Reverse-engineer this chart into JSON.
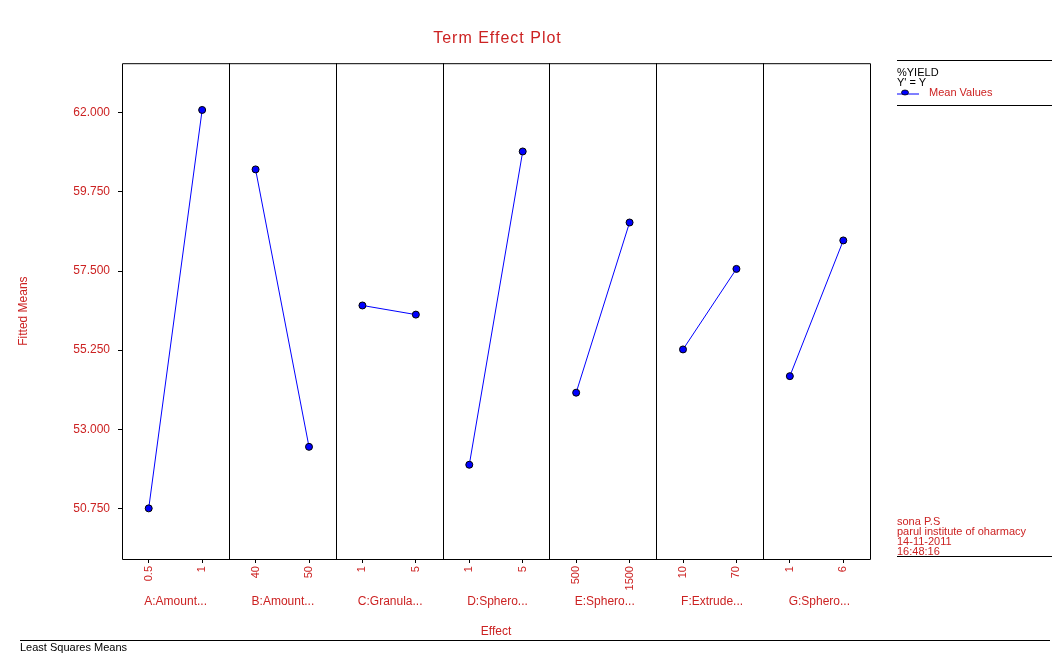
{
  "chart_data": {
    "type": "line",
    "title": "Term Effect Plot",
    "ylabel": "Fitted Means",
    "xlabel": "Effect",
    "legend": "right",
    "legend_title": "%YIELD\nY' = Y",
    "marker": "circle",
    "categories": [
      "0.5",
      "1",
      "40",
      "50",
      "1",
      "5",
      "1",
      "5",
      "500",
      "1500",
      "10",
      "70",
      "1",
      "6"
    ],
    "ylim": [
      49.31,
      63.41
    ],
    "yticks": [
      {
        "value": 50.75,
        "label": "50.750"
      },
      {
        "value": 53,
        "label": "53.000"
      },
      {
        "value": 55.25,
        "label": "55.250"
      },
      {
        "value": 57.5,
        "label": "57.500"
      },
      {
        "value": 59.75,
        "label": "59.750"
      },
      {
        "value": 62,
        "label": "62.000"
      }
    ],
    "annotations": [
      "A:Amount...",
      "B:Amount...",
      "C:Granula...",
      "D:Sphero...",
      "E:Sphero...",
      "F:Extrude...",
      "G:Sphero...",
      "Least Squares Means",
      "sona P.S\nparul institute of  oharmacy\n14-11-2011\n16:48:16"
    ],
    "series": [
      {
        "name": "Mean Values",
        "color": "#0000ff",
        "values": [
          50.75,
          62.08,
          null,
          null,
          null,
          null,
          null,
          null,
          null,
          null,
          null,
          null,
          null,
          null
        ]
      },
      {
        "color": "#0000ff",
        "values": [
          null,
          null,
          60.39,
          52.5,
          null,
          null,
          null,
          null,
          null,
          null,
          null,
          null,
          null,
          null
        ]
      },
      {
        "color": "#0000ff",
        "values": [
          null,
          null,
          null,
          null,
          56.52,
          56.26,
          null,
          null,
          null,
          null,
          null,
          null,
          null,
          null
        ]
      },
      {
        "color": "#0000ff",
        "values": [
          null,
          null,
          null,
          null,
          null,
          null,
          51.99,
          60.9,
          null,
          null,
          null,
          null,
          null,
          null
        ]
      },
      {
        "color": "#0000ff",
        "values": [
          null,
          null,
          null,
          null,
          null,
          null,
          null,
          null,
          54.04,
          58.88,
          null,
          null,
          null,
          null
        ]
      },
      {
        "color": "#0000ff",
        "values": [
          null,
          null,
          null,
          null,
          null,
          null,
          null,
          null,
          null,
          null,
          55.27,
          57.56,
          null,
          null
        ]
      },
      {
        "color": "#0000ff",
        "values": [
          null,
          null,
          null,
          null,
          null,
          null,
          null,
          null,
          null,
          null,
          null,
          null,
          54.51,
          58.37
        ]
      }
    ]
  }
}
